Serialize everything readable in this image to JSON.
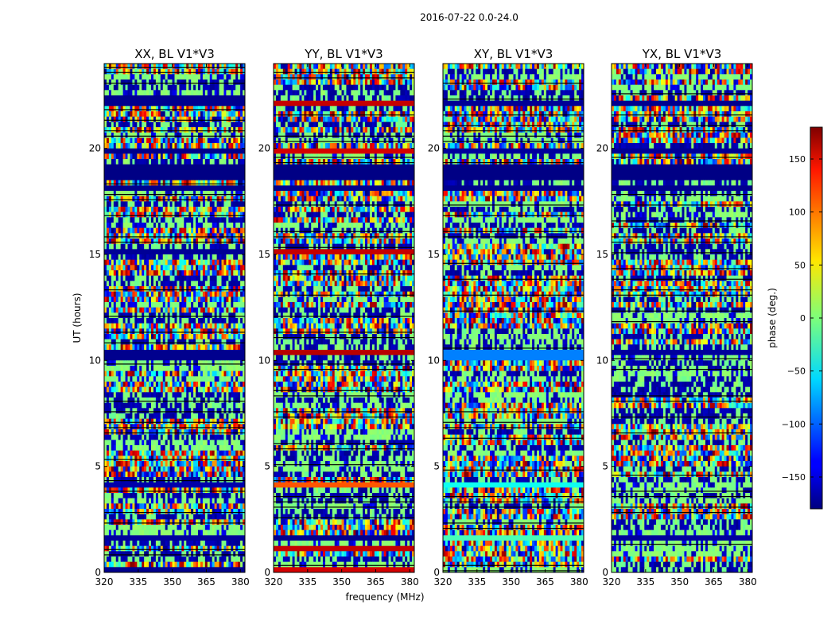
{
  "chart_data": {
    "type": "heatmap",
    "suptitle": "2016-07-22 0.0-24.0",
    "xlabel": "frequency (MHz)",
    "ylabel": "UT (hours)",
    "xlim": [
      320,
      382
    ],
    "ylim": [
      0,
      24
    ],
    "xticks": [
      "320",
      "335",
      "350",
      "365",
      "380"
    ],
    "xtick_values": [
      320,
      335,
      350,
      365,
      380
    ],
    "yticks": [
      "0",
      "5",
      "10",
      "15",
      "20"
    ],
    "ytick_values": [
      0,
      5,
      10,
      15,
      20
    ],
    "colormap": "jet",
    "colorbar": {
      "label": "phase (deg.)",
      "range": [
        -180,
        180
      ],
      "ticks": [
        "150",
        "100",
        "50",
        "0",
        "−50",
        "−100",
        "−150"
      ],
      "tick_values": [
        150,
        100,
        50,
        0,
        -50,
        -100,
        -150
      ]
    },
    "panels": [
      {
        "title": "XX, BL V1*V3",
        "solid_bands": [
          {
            "t0": 0.0,
            "t1": 0.25,
            "phase": -175
          },
          {
            "t0": 0.9,
            "t1": 1.1,
            "phase": -172
          },
          {
            "t0": 1.5,
            "t1": 1.7,
            "phase": -170
          },
          {
            "t0": 4.1,
            "t1": 4.3,
            "phase": -165
          },
          {
            "t0": 10.0,
            "t1": 10.6,
            "phase": -175
          },
          {
            "t0": 14.9,
            "t1": 15.2,
            "phase": -172
          },
          {
            "t0": 17.9,
            "t1": 18.2,
            "phase": -175
          },
          {
            "t0": 18.4,
            "t1": 19.2,
            "phase": -178
          },
          {
            "t0": 19.7,
            "t1": 20.1,
            "phase": -176
          },
          {
            "t0": 22.0,
            "t1": 22.4,
            "phase": -175
          }
        ]
      },
      {
        "title": "YY, BL V1*V3",
        "solid_bands": [
          {
            "t0": 0.0,
            "t1": 0.2,
            "phase": 150
          },
          {
            "t0": 1.0,
            "t1": 1.2,
            "phase": 155
          },
          {
            "t0": 1.5,
            "t1": 1.7,
            "phase": -175
          },
          {
            "t0": 4.1,
            "t1": 4.3,
            "phase": 105
          },
          {
            "t0": 10.2,
            "t1": 10.5,
            "phase": 160
          },
          {
            "t0": 15.0,
            "t1": 15.2,
            "phase": 155
          },
          {
            "t0": 17.9,
            "t1": 18.2,
            "phase": -175
          },
          {
            "t0": 18.4,
            "t1": 19.2,
            "phase": -178
          },
          {
            "t0": 19.8,
            "t1": 20.0,
            "phase": 150
          },
          {
            "t0": 22.1,
            "t1": 22.3,
            "phase": 155
          }
        ]
      },
      {
        "title": "XY, BL V1*V3",
        "solid_bands": [
          {
            "t0": 0.9,
            "t1": 1.1,
            "phase": -172
          },
          {
            "t0": 1.6,
            "t1": 1.8,
            "phase": -20
          },
          {
            "t0": 4.1,
            "t1": 4.3,
            "phase": -40
          },
          {
            "t0": 10.1,
            "t1": 10.5,
            "phase": -90
          },
          {
            "t0": 17.9,
            "t1": 18.2,
            "phase": -175
          },
          {
            "t0": 18.4,
            "t1": 19.2,
            "phase": -178
          },
          {
            "t0": 19.7,
            "t1": 20.0,
            "phase": -170
          },
          {
            "t0": 22.0,
            "t1": 22.3,
            "phase": -172
          }
        ]
      },
      {
        "title": "YX, BL V1*V3",
        "solid_bands": [
          {
            "t0": 0.9,
            "t1": 1.1,
            "phase": -172
          },
          {
            "t0": 1.6,
            "t1": 1.8,
            "phase": -170
          },
          {
            "t0": 10.2,
            "t1": 10.5,
            "phase": -170
          },
          {
            "t0": 17.9,
            "t1": 18.2,
            "phase": -175
          },
          {
            "t0": 18.4,
            "t1": 19.2,
            "phase": -178
          },
          {
            "t0": 19.7,
            "t1": 20.0,
            "phase": -172
          },
          {
            "t0": 22.0,
            "t1": 22.3,
            "phase": -175
          }
        ]
      }
    ]
  }
}
